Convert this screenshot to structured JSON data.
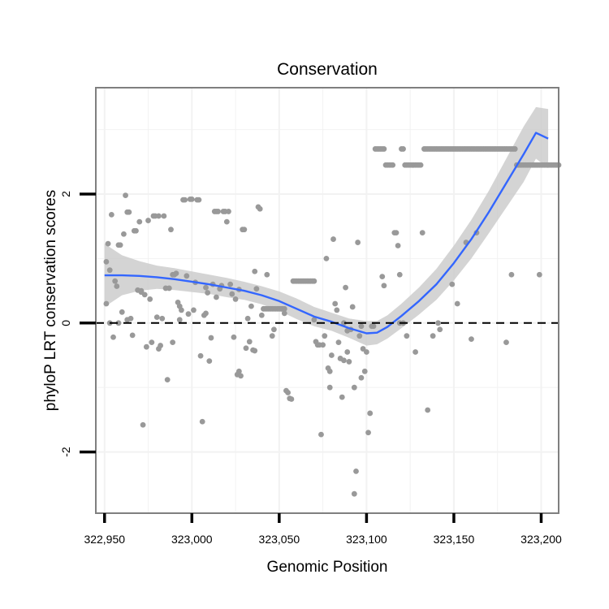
{
  "chart_data": {
    "type": "scatter",
    "title": "Conservation",
    "xlabel": "Genomic Position",
    "ylabel": "phyloP LRT conservation scores",
    "xlim": [
      322945,
      323210
    ],
    "ylim": [
      -2.95,
      3.65
    ],
    "x_ticks": [
      322950,
      323000,
      323050,
      323100,
      323150,
      323200
    ],
    "x_tick_labels": [
      "322,950",
      "323,000",
      "323,050",
      "323,100",
      "323,150",
      "323,200"
    ],
    "y_ticks": [
      -2,
      0,
      2
    ],
    "y_tick_labels": [
      "-2",
      "0",
      "2"
    ],
    "reference_line": {
      "y": 0,
      "style": "dashed"
    },
    "grid": true,
    "colors": {
      "points": "#999999",
      "smooth_line": "#3366ff",
      "confidence_band": "#cccccc",
      "panel_border": "#7f7f7f",
      "grid": "#f2f2f2",
      "reference_line": "#000000"
    },
    "points": [
      [
        322951,
        0.95
      ],
      [
        322952,
        1.23
      ],
      [
        322953,
        0.82
      ],
      [
        322954,
        1.68
      ],
      [
        322955,
        -0.22
      ],
      [
        322956,
        0.65
      ],
      [
        322957,
        0.57
      ],
      [
        322958,
        1.21
      ],
      [
        322959,
        1.21
      ],
      [
        322960,
        0.17
      ],
      [
        322961,
        1.38
      ],
      [
        322962,
        1.98
      ],
      [
        322963,
        1.72
      ],
      [
        322964,
        1.72
      ],
      [
        322965,
        0.07
      ],
      [
        322966,
        -0.19
      ],
      [
        322967,
        1.43
      ],
      [
        322968,
        1.43
      ],
      [
        322969,
        0.51
      ],
      [
        322970,
        1.57
      ],
      [
        322971,
        0.48
      ],
      [
        322972,
        -1.58
      ],
      [
        322973,
        0.44
      ],
      [
        322974,
        -0.37
      ],
      [
        322975,
        1.59
      ],
      [
        322976,
        0.37
      ],
      [
        322977,
        -0.3
      ],
      [
        322978,
        1.66
      ],
      [
        322979,
        1.66
      ],
      [
        322980,
        0.09
      ],
      [
        322981,
        1.66
      ],
      [
        322982,
        -0.35
      ],
      [
        322983,
        0.07
      ],
      [
        322984,
        1.66
      ],
      [
        322985,
        0.54
      ],
      [
        322986,
        -0.88
      ],
      [
        322987,
        0.54
      ],
      [
        322988,
        1.45
      ],
      [
        322989,
        0.75
      ],
      [
        322990,
        0.75
      ],
      [
        322991,
        0.77
      ],
      [
        322992,
        0.32
      ],
      [
        322993,
        0.26
      ],
      [
        322994,
        0.2
      ],
      [
        322995,
        1.91
      ],
      [
        322996,
        1.91
      ],
      [
        322997,
        0.73
      ],
      [
        322998,
        0.14
      ],
      [
        322999,
        1.92
      ],
      [
        323000,
        1.92
      ],
      [
        323001,
        0.2
      ],
      [
        323002,
        0.63
      ],
      [
        323003,
        1.91
      ],
      [
        323004,
        1.91
      ],
      [
        323005,
        -0.51
      ],
      [
        323006,
        -1.53
      ],
      [
        323007,
        0.12
      ],
      [
        323008,
        0.55
      ],
      [
        323009,
        0.47
      ],
      [
        323010,
        -0.59
      ],
      [
        323011,
        -0.23
      ],
      [
        323012,
        0.6
      ],
      [
        323013,
        1.73
      ],
      [
        323014,
        1.73
      ],
      [
        323015,
        1.73
      ],
      [
        323016,
        0.53
      ],
      [
        323017,
        0.58
      ],
      [
        323018,
        1.73
      ],
      [
        323019,
        1.73
      ],
      [
        323020,
        1.57
      ],
      [
        323021,
        1.73
      ],
      [
        323022,
        0.6
      ],
      [
        323023,
        0.45
      ],
      [
        323024,
        -0.22
      ],
      [
        323025,
        0.37
      ],
      [
        323026,
        -0.8
      ],
      [
        323027,
        -0.75
      ],
      [
        323028,
        -0.82
      ],
      [
        323029,
        1.45
      ],
      [
        323030,
        1.45
      ],
      [
        323031,
        -0.39
      ],
      [
        323032,
        0.07
      ],
      [
        323033,
        -0.29
      ],
      [
        323034,
        0.26
      ],
      [
        323035,
        -0.42
      ],
      [
        323036,
        -0.43
      ],
      [
        323037,
        0.53
      ],
      [
        323038,
        1.8
      ],
      [
        323039,
        1.77
      ],
      [
        323040,
        0.12
      ],
      [
        323041,
        0.22
      ],
      [
        323042,
        0.22
      ],
      [
        323043,
        0.22
      ],
      [
        323044,
        0.22
      ],
      [
        323045,
        0.22
      ],
      [
        323046,
        0.22
      ],
      [
        323047,
        0.22
      ],
      [
        323048,
        0.22
      ],
      [
        323049,
        0.22
      ],
      [
        323050,
        0.22
      ],
      [
        323051,
        0.22
      ],
      [
        323052,
        0.22
      ],
      [
        323053,
        0.22
      ],
      [
        323054,
        -1.05
      ],
      [
        323055,
        -1.08
      ],
      [
        323056,
        -1.17
      ],
      [
        323057,
        -1.18
      ],
      [
        323058,
        0.65
      ],
      [
        323059,
        0.65
      ],
      [
        323060,
        0.65
      ],
      [
        323061,
        0.65
      ],
      [
        323062,
        0.65
      ],
      [
        323063,
        0.65
      ],
      [
        323064,
        0.65
      ],
      [
        323065,
        0.65
      ],
      [
        323066,
        0.65
      ],
      [
        323067,
        0.65
      ],
      [
        323068,
        0.65
      ],
      [
        323069,
        0.65
      ],
      [
        323070,
        0.65
      ],
      [
        323071,
        -0.29
      ],
      [
        323072,
        -0.34
      ],
      [
        323073,
        -0.34
      ],
      [
        323074,
        -1.73
      ],
      [
        323075,
        -0.34
      ],
      [
        323076,
        -0.2
      ],
      [
        323077,
        1.0
      ],
      [
        323078,
        -0.7
      ],
      [
        323079,
        -1.0
      ],
      [
        323080,
        -0.5
      ],
      [
        323081,
        1.3
      ],
      [
        323082,
        0.3
      ],
      [
        323083,
        0.2
      ],
      [
        323084,
        -0.3
      ],
      [
        323085,
        -0.55
      ],
      [
        323086,
        -1.15
      ],
      [
        323087,
        0.0
      ],
      [
        323088,
        0.55
      ],
      [
        323089,
        -0.45
      ],
      [
        323090,
        -0.6
      ],
      [
        323091,
        -0.1
      ],
      [
        323092,
        0.25
      ],
      [
        323093,
        -2.65
      ],
      [
        323094,
        -2.3
      ],
      [
        323095,
        1.25
      ],
      [
        323096,
        -0.2
      ],
      [
        323097,
        -0.85
      ],
      [
        323098,
        -0.4
      ],
      [
        323099,
        -0.75
      ],
      [
        323100,
        -0.45
      ],
      [
        323101,
        -1.7
      ],
      [
        323102,
        -1.4
      ],
      [
        323103,
        -0.05
      ],
      [
        323104,
        -0.05
      ],
      [
        323105,
        2.7
      ],
      [
        323106,
        2.7
      ],
      [
        323107,
        2.7
      ],
      [
        323108,
        2.7
      ],
      [
        323109,
        2.7
      ],
      [
        323110,
        2.7
      ],
      [
        323111,
        2.45
      ],
      [
        323112,
        2.45
      ],
      [
        323113,
        2.45
      ],
      [
        323114,
        2.45
      ],
      [
        323115,
        2.45
      ],
      [
        323116,
        1.4
      ],
      [
        323117,
        1.4
      ],
      [
        323118,
        1.2
      ],
      [
        323119,
        0.75
      ],
      [
        323120,
        2.7
      ],
      [
        323121,
        2.7
      ],
      [
        323122,
        2.45
      ],
      [
        323123,
        2.45
      ],
      [
        323124,
        2.45
      ],
      [
        323125,
        2.45
      ],
      [
        323126,
        2.45
      ],
      [
        323127,
        2.45
      ],
      [
        323128,
        2.45
      ],
      [
        323129,
        2.45
      ],
      [
        323130,
        2.45
      ],
      [
        323131,
        2.45
      ],
      [
        323132,
        1.4
      ],
      [
        323133,
        2.7
      ],
      [
        323134,
        2.7
      ],
      [
        323135,
        2.7
      ],
      [
        323136,
        2.7
      ],
      [
        323137,
        2.7
      ],
      [
        323138,
        2.7
      ],
      [
        323139,
        2.7
      ],
      [
        323140,
        2.7
      ],
      [
        323141,
        2.7
      ],
      [
        323142,
        2.7
      ],
      [
        323143,
        2.7
      ],
      [
        323144,
        2.7
      ],
      [
        323145,
        2.7
      ],
      [
        323146,
        2.7
      ],
      [
        323147,
        2.7
      ],
      [
        323148,
        2.7
      ],
      [
        323149,
        2.7
      ],
      [
        323150,
        2.7
      ],
      [
        323151,
        2.7
      ],
      [
        323152,
        2.7
      ],
      [
        323153,
        2.7
      ],
      [
        323154,
        2.7
      ],
      [
        323155,
        2.7
      ],
      [
        323156,
        2.7
      ],
      [
        323157,
        2.7
      ],
      [
        323158,
        2.7
      ],
      [
        323159,
        2.7
      ],
      [
        323160,
        2.7
      ],
      [
        323161,
        2.7
      ],
      [
        323162,
        2.7
      ],
      [
        323163,
        2.7
      ],
      [
        323164,
        2.7
      ],
      [
        323165,
        2.7
      ],
      [
        323166,
        2.7
      ],
      [
        323167,
        2.7
      ],
      [
        323168,
        2.7
      ],
      [
        323169,
        2.7
      ],
      [
        323170,
        2.7
      ],
      [
        323171,
        2.7
      ],
      [
        323172,
        2.7
      ],
      [
        323173,
        2.7
      ],
      [
        323174,
        2.7
      ],
      [
        323175,
        2.7
      ],
      [
        323176,
        2.7
      ],
      [
        323177,
        2.7
      ],
      [
        323178,
        2.7
      ],
      [
        323179,
        2.7
      ],
      [
        323180,
        2.7
      ],
      [
        323181,
        2.7
      ],
      [
        323182,
        2.7
      ],
      [
        323183,
        2.7
      ],
      [
        323184,
        2.7
      ],
      [
        323185,
        2.7
      ],
      [
        323186,
        2.45
      ],
      [
        323187,
        2.45
      ],
      [
        323188,
        2.45
      ],
      [
        323189,
        2.45
      ],
      [
        323190,
        2.45
      ],
      [
        323191,
        2.45
      ],
      [
        323192,
        2.45
      ],
      [
        323193,
        2.45
      ],
      [
        323194,
        2.45
      ],
      [
        323195,
        2.45
      ],
      [
        323196,
        2.45
      ],
      [
        323197,
        2.45
      ],
      [
        323198,
        2.45
      ],
      [
        323199,
        2.45
      ],
      [
        323200,
        2.45
      ],
      [
        323201,
        2.45
      ],
      [
        323202,
        2.45
      ],
      [
        323203,
        2.45
      ],
      [
        323204,
        2.45
      ],
      [
        323205,
        2.45
      ],
      [
        323206,
        2.45
      ],
      [
        323207,
        2.45
      ],
      [
        323208,
        2.45
      ],
      [
        323209,
        2.45
      ],
      [
        323210,
        2.45
      ],
      [
        322951,
        0.3
      ],
      [
        322953,
        0.0
      ],
      [
        322958,
        0.0
      ],
      [
        322963,
        0.05
      ],
      [
        322971,
        0.5
      ],
      [
        322981,
        -0.4
      ],
      [
        322989,
        -0.3
      ],
      [
        322993,
        0.05
      ],
      [
        323008,
        0.15
      ],
      [
        323014,
        0.4
      ],
      [
        323027,
        0.52
      ],
      [
        323036,
        0.8
      ],
      [
        323043,
        0.75
      ],
      [
        323046,
        -0.2
      ],
      [
        323047,
        -0.1
      ],
      [
        323053,
        0.15
      ],
      [
        323070,
        0.05
      ],
      [
        323079,
        -0.75
      ],
      [
        323087,
        -0.58
      ],
      [
        323089,
        -0.12
      ],
      [
        323093,
        -1.0
      ],
      [
        323097,
        -0.05
      ],
      [
        323109,
        0.72
      ],
      [
        323110,
        0.58
      ],
      [
        323119,
        0.0
      ],
      [
        323121,
        0.0
      ],
      [
        323123,
        -0.2
      ],
      [
        323128,
        -0.45
      ],
      [
        323135,
        -1.35
      ],
      [
        323138,
        -0.2
      ],
      [
        323141,
        0.0
      ],
      [
        323149,
        0.6
      ],
      [
        323152,
        0.3
      ],
      [
        323157,
        1.25
      ],
      [
        323163,
        1.4
      ],
      [
        323180,
        -0.3
      ],
      [
        323183,
        0.75
      ],
      [
        323199,
        0.75
      ],
      [
        323160,
        -0.25
      ],
      [
        323142,
        -0.1
      ]
    ],
    "smooth_curve": [
      [
        322950,
        0.74
      ],
      [
        322960,
        0.74
      ],
      [
        322970,
        0.73
      ],
      [
        322980,
        0.71
      ],
      [
        322990,
        0.68
      ],
      [
        323000,
        0.64
      ],
      [
        323010,
        0.6
      ],
      [
        323020,
        0.55
      ],
      [
        323030,
        0.5
      ],
      [
        323040,
        0.43
      ],
      [
        323050,
        0.34
      ],
      [
        323060,
        0.22
      ],
      [
        323070,
        0.1
      ],
      [
        323080,
        0.02
      ],
      [
        323090,
        -0.08
      ],
      [
        323100,
        -0.16
      ],
      [
        323106,
        -0.15
      ],
      [
        323112,
        -0.06
      ],
      [
        323120,
        0.11
      ],
      [
        323130,
        0.34
      ],
      [
        323140,
        0.6
      ],
      [
        323150,
        0.93
      ],
      [
        323160,
        1.3
      ],
      [
        323170,
        1.72
      ],
      [
        323180,
        2.17
      ],
      [
        323190,
        2.62
      ],
      [
        323197,
        2.95
      ],
      [
        323204,
        2.86
      ]
    ],
    "band_upper": [
      [
        322950,
        1.23
      ],
      [
        322960,
        1.05
      ],
      [
        322970,
        0.96
      ],
      [
        322980,
        0.89
      ],
      [
        322990,
        0.85
      ],
      [
        323000,
        0.8
      ],
      [
        323010,
        0.75
      ],
      [
        323020,
        0.7
      ],
      [
        323030,
        0.64
      ],
      [
        323040,
        0.57
      ],
      [
        323050,
        0.49
      ],
      [
        323060,
        0.38
      ],
      [
        323070,
        0.25
      ],
      [
        323080,
        0.16
      ],
      [
        323090,
        0.07
      ],
      [
        323100,
        0.03
      ],
      [
        323106,
        0.03
      ],
      [
        323112,
        0.12
      ],
      [
        323120,
        0.3
      ],
      [
        323130,
        0.55
      ],
      [
        323140,
        0.84
      ],
      [
        323150,
        1.2
      ],
      [
        323160,
        1.6
      ],
      [
        323170,
        2.05
      ],
      [
        323180,
        2.55
      ],
      [
        323190,
        3.05
      ],
      [
        323197,
        3.35
      ],
      [
        323204,
        3.32
      ]
    ],
    "band_lower": [
      [
        322950,
        0.25
      ],
      [
        322960,
        0.43
      ],
      [
        322970,
        0.5
      ],
      [
        322980,
        0.53
      ],
      [
        322990,
        0.51
      ],
      [
        323000,
        0.48
      ],
      [
        323010,
        0.45
      ],
      [
        323020,
        0.4
      ],
      [
        323030,
        0.36
      ],
      [
        323040,
        0.29
      ],
      [
        323050,
        0.19
      ],
      [
        323060,
        0.06
      ],
      [
        323070,
        -0.05
      ],
      [
        323080,
        -0.12
      ],
      [
        323090,
        -0.23
      ],
      [
        323100,
        -0.35
      ],
      [
        323106,
        -0.33
      ],
      [
        323112,
        -0.24
      ],
      [
        323120,
        -0.08
      ],
      [
        323130,
        0.13
      ],
      [
        323140,
        0.36
      ],
      [
        323150,
        0.66
      ],
      [
        323160,
        1.0
      ],
      [
        323170,
        1.39
      ],
      [
        323180,
        1.79
      ],
      [
        323190,
        2.19
      ],
      [
        323197,
        2.55
      ],
      [
        323204,
        2.4
      ]
    ]
  }
}
